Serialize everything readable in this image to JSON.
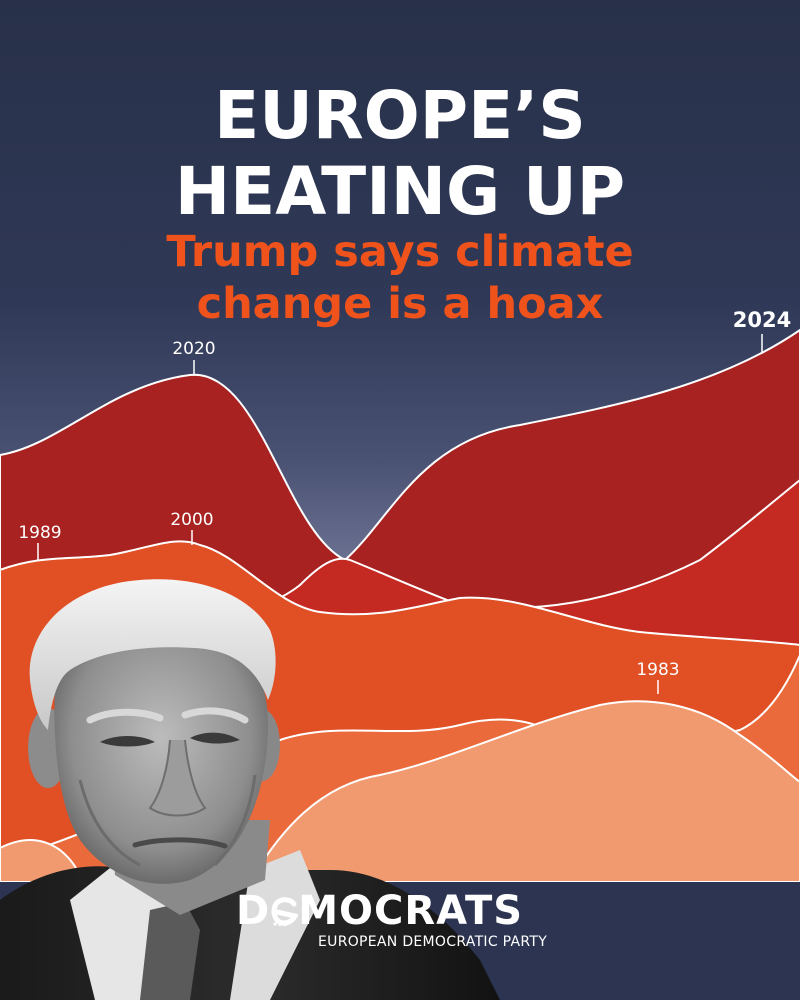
{
  "headline": {
    "line1": "EUROPE’S",
    "line2": "HEATING UP"
  },
  "subheadline": {
    "line1": "Trump says climate",
    "line2": "change is a hoax"
  },
  "chart_labels": {
    "year_2024": "2024",
    "year_2020": "2020",
    "year_2000": "2000",
    "year_1989": "1989",
    "year_1983": "1983"
  },
  "logo": {
    "name_start": "D",
    "name_rest": "MOCRATS",
    "tagline": "EUROPEAN DEMOCRATIC PARTY"
  },
  "colors": {
    "background_navy": "#2a3350",
    "headline_white": "#ffffff",
    "subheadline_orange": "#f0521c",
    "layer_dark_red": "#a72220",
    "layer_red": "#c42a22",
    "layer_orange": "#e14f25",
    "layer_light_orange": "#eb6a3c",
    "layer_peach": "#f19a70"
  },
  "images": {
    "portrait": "grayscale-portrait-of-man-in-suit"
  }
}
